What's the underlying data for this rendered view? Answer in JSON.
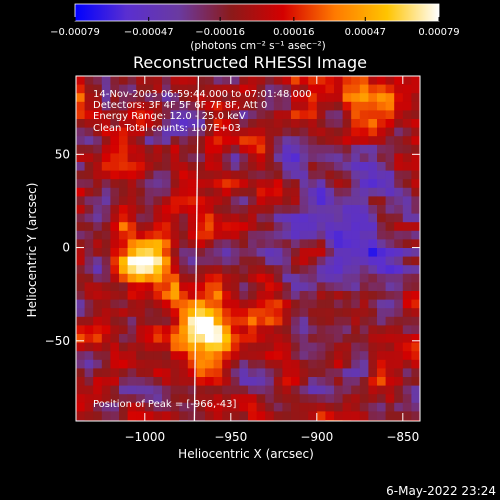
{
  "chart_data": {
    "type": "heatmap",
    "title": "Reconstructed RHESSI Image",
    "xlabel": "Heliocentric X (arcsec)",
    "ylabel": "Heliocentric Y (arcsec)",
    "xlim": [
      -1040,
      -840
    ],
    "ylim": [
      -93,
      92
    ],
    "x_ticks": [
      -1000,
      -950,
      -900,
      -850
    ],
    "x_tick_labels": [
      "−1000",
      "−950",
      "−900",
      "−850"
    ],
    "y_ticks": [
      50,
      0,
      -50
    ],
    "y_tick_labels": [
      "50",
      "0",
      "−50"
    ],
    "colorbar": {
      "min": -0.00079,
      "max": 0.00079,
      "ticks": [
        -0.00079,
        -0.00047,
        -0.00016,
        0.00016,
        0.00047,
        0.00079
      ],
      "tick_labels": [
        "−0.00079",
        "−0.00047",
        "−0.00016",
        "0.00016",
        "0.00047",
        "0.00079"
      ],
      "colormap": [
        "#0000ff",
        "#5a2fd0",
        "#6a3aa0",
        "#8b1a1a",
        "#d40000",
        "#ff7a00",
        "#ffc400",
        "#ffffff"
      ]
    },
    "units": "(photons cm⁻² s⁻¹ asec⁻²)",
    "annotations": {
      "time_range": "14-Nov-2003 06:59:44.000 to 07:01:48.000",
      "detectors": "Detectors: 3F 4F 5F 6F 7F 8F, Att 0",
      "energy": "Energy Range: 12.0 - 25.0 keV",
      "algorithm": "Clean     Total counts: 1.07E+03",
      "peak": "Position of Peak = [-966,-43]"
    },
    "peak_position": [
      -966,
      -43
    ],
    "limb_x": -970
  },
  "footer": {
    "date": "6-May-2022 23:24"
  }
}
